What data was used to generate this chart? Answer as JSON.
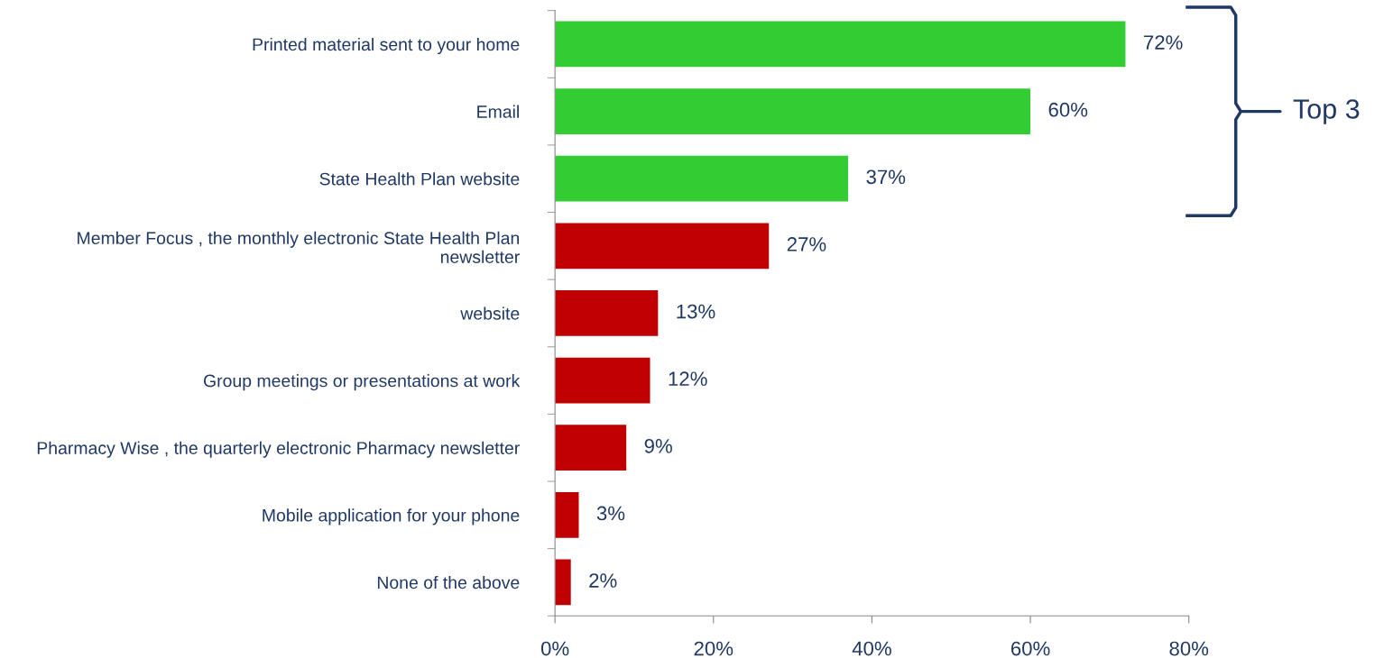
{
  "chart_data": {
    "type": "bar",
    "orientation": "horizontal",
    "categories": [
      "Printed material sent to your home",
      "Email",
      "State Health Plan website",
      "Member Focus , the monthly electronic State Health Plan newsletter",
      "website",
      "Group meetings or presentations at work",
      "Pharmacy Wise , the quarterly electronic Pharmacy newsletter",
      "Mobile application for your phone",
      "None of the above"
    ],
    "values": [
      72,
      60,
      37,
      27,
      13,
      12,
      9,
      3,
      2
    ],
    "colors": [
      "#33cc33",
      "#33cc33",
      "#33cc33",
      "#c00000",
      "#c00000",
      "#c00000",
      "#c00000",
      "#c00000",
      "#c00000"
    ],
    "value_labels": [
      "72%",
      "60%",
      "37%",
      "27%",
      "13%",
      "12%",
      "9%",
      "3%",
      "2%"
    ],
    "xlim": [
      0,
      80
    ],
    "xticks": [
      {
        "value": 0,
        "label": "0%"
      },
      {
        "value": 20,
        "label": "20%"
      },
      {
        "value": 40,
        "label": "40%"
      },
      {
        "value": 60,
        "label": "60%"
      },
      {
        "value": 80,
        "label": "80%"
      }
    ],
    "annotations": [
      "Top 3"
    ],
    "grid": false,
    "legend": false
  }
}
